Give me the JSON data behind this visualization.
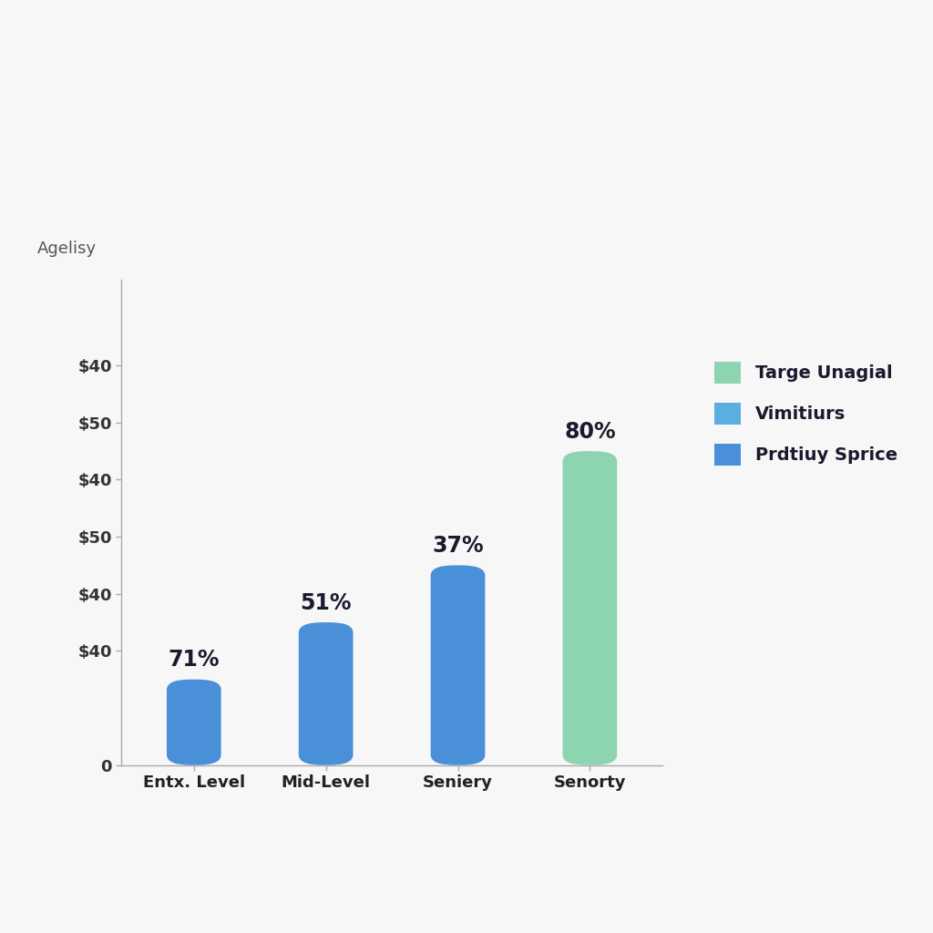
{
  "categories": [
    "Entx. Level",
    "Mid-Level",
    "Seniery",
    "Senorty"
  ],
  "values": [
    1.5,
    2.5,
    3.5,
    5.5
  ],
  "bar_colors": [
    "#4a90d9",
    "#4a90d9",
    "#4a90d9",
    "#8dd5b0"
  ],
  "labels": [
    "71%",
    "51%",
    "37%",
    "80%"
  ],
  "ylabel": "Agelisy",
  "ytick_labels": [
    "$40",
    "$50",
    "$40",
    "$50",
    "$40",
    "$40",
    "0"
  ],
  "ytick_values": [
    7.0,
    6.0,
    5.0,
    4.0,
    3.0,
    2.0,
    0.0
  ],
  "legend_items": [
    {
      "label": "Targe Unagial",
      "color": "#8dd5b0"
    },
    {
      "label": "Vimitiurs",
      "color": "#5baee0"
    },
    {
      "label": "Prdtiuy Sprice",
      "color": "#4a90d9"
    }
  ],
  "background_color": "#f7f7f7",
  "label_fontsize": 17,
  "axis_label_fontsize": 13,
  "tick_fontsize": 13,
  "legend_fontsize": 14,
  "bar_width": 0.52,
  "ylim_max": 8.5,
  "rounding_size": 0.18
}
